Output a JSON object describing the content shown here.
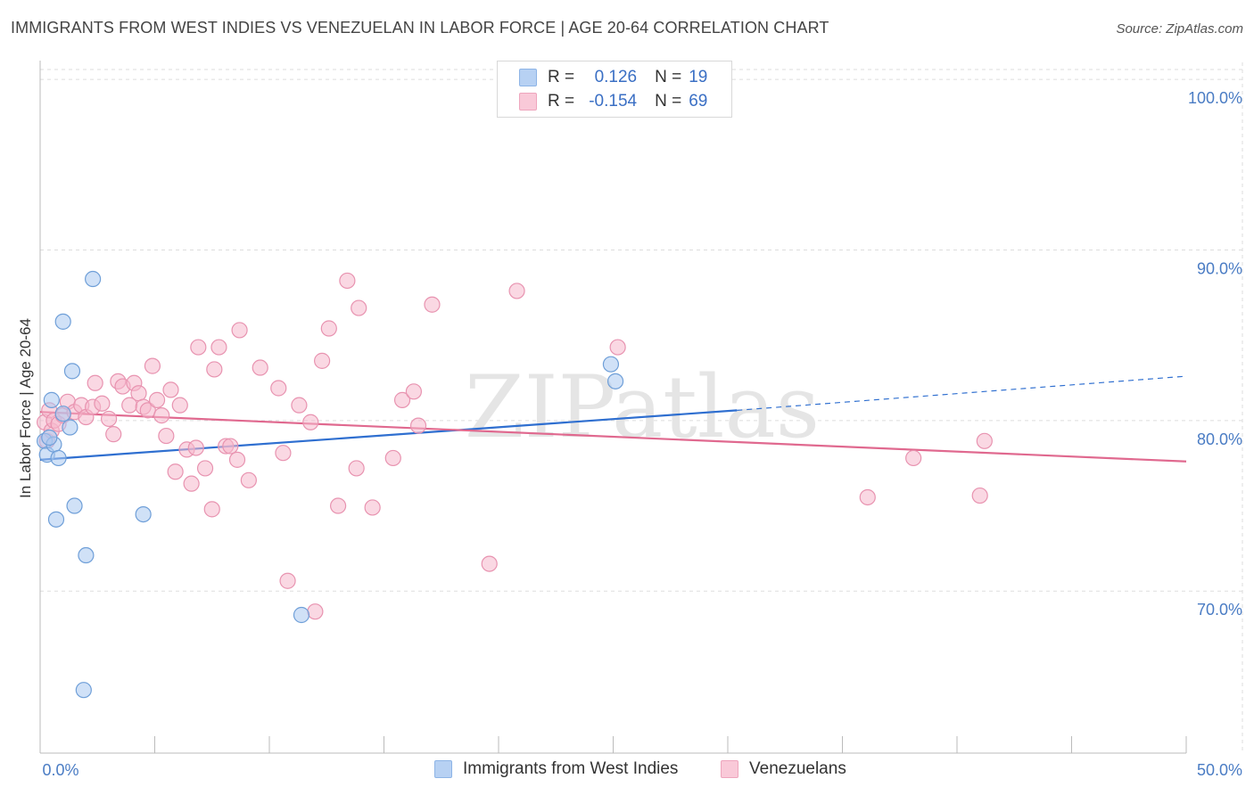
{
  "title": "IMMIGRANTS FROM WEST INDIES VS VENEZUELAN IN LABOR FORCE | AGE 20-64 CORRELATION CHART",
  "source": "Source: ZipAtlas.com",
  "watermark": "ZIPatlas",
  "legend": {
    "series1": {
      "r_label": "R =",
      "r_value": "0.126",
      "n_label": "N =",
      "n_value": "19"
    },
    "series2": {
      "r_label": "R =",
      "r_value": "-0.154",
      "n_label": "N =",
      "n_value": "69"
    }
  },
  "colors": {
    "blue_fill": "#aac8f0",
    "blue_stroke": "#6f9fd8",
    "blue_line": "#2f6fd0",
    "pink_fill": "#f5b8cc",
    "pink_stroke": "#e893b0",
    "pink_line": "#e0698f",
    "grid": "#dddddd",
    "tick_text": "#4a7cc4"
  },
  "chart_data": {
    "type": "scatter",
    "title": "IMMIGRANTS FROM WEST INDIES VS VENEZUELAN IN LABOR FORCE | AGE 20-64 CORRELATION CHART",
    "xlabel": "",
    "ylabel": "In Labor Force | Age 20-64",
    "xlim": [
      0,
      50
    ],
    "ylim": [
      60.5,
      101
    ],
    "x_tick_labels": [
      "0.0%",
      "50.0%"
    ],
    "y_ticks": [
      70,
      80,
      90,
      100
    ],
    "y_tick_labels": [
      "70.0%",
      "80.0%",
      "90.0%",
      "100.0%"
    ],
    "grid": "horizontal dashed",
    "legend_position": "top-center and bottom",
    "series": [
      {
        "name": "Immigrants from West Indies",
        "color": "#aac8f0",
        "points": [
          [
            0.2,
            78.8
          ],
          [
            0.3,
            78.0
          ],
          [
            0.5,
            81.2
          ],
          [
            0.6,
            78.6
          ],
          [
            0.7,
            74.2
          ],
          [
            0.8,
            77.8
          ],
          [
            1.0,
            80.4
          ],
          [
            1.0,
            85.8
          ],
          [
            1.3,
            79.6
          ],
          [
            1.4,
            82.9
          ],
          [
            1.5,
            75.0
          ],
          [
            2.0,
            72.1
          ],
          [
            2.3,
            88.3
          ],
          [
            1.9,
            64.2
          ],
          [
            4.5,
            74.5
          ],
          [
            11.4,
            68.6
          ],
          [
            24.9,
            83.3
          ],
          [
            25.1,
            82.3
          ],
          [
            0.4,
            79.0
          ]
        ],
        "trend": {
          "x": [
            0,
            30.4
          ],
          "y": [
            77.7,
            80.6
          ]
        },
        "trend_extension": {
          "x": [
            30.4,
            50
          ],
          "y": [
            80.6,
            82.6
          ]
        }
      },
      {
        "name": "Venezuelans",
        "color": "#f5b8cc",
        "points": [
          [
            0.2,
            79.9
          ],
          [
            0.3,
            78.8
          ],
          [
            0.4,
            80.6
          ],
          [
            0.5,
            79.4
          ],
          [
            0.6,
            80.0
          ],
          [
            0.8,
            79.8
          ],
          [
            1.0,
            80.3
          ],
          [
            1.2,
            81.1
          ],
          [
            1.5,
            80.5
          ],
          [
            1.8,
            80.9
          ],
          [
            2.0,
            80.2
          ],
          [
            2.3,
            80.8
          ],
          [
            2.4,
            82.2
          ],
          [
            2.7,
            81.0
          ],
          [
            3.0,
            80.1
          ],
          [
            3.2,
            79.2
          ],
          [
            3.4,
            82.3
          ],
          [
            3.6,
            82.0
          ],
          [
            3.9,
            80.9
          ],
          [
            4.1,
            82.2
          ],
          [
            4.3,
            81.6
          ],
          [
            4.5,
            80.8
          ],
          [
            4.7,
            80.6
          ],
          [
            4.9,
            83.2
          ],
          [
            5.1,
            81.2
          ],
          [
            5.3,
            80.3
          ],
          [
            5.5,
            79.1
          ],
          [
            5.7,
            81.8
          ],
          [
            5.9,
            77.0
          ],
          [
            6.1,
            80.9
          ],
          [
            6.4,
            78.3
          ],
          [
            6.6,
            76.3
          ],
          [
            6.8,
            78.4
          ],
          [
            6.9,
            84.3
          ],
          [
            7.2,
            77.2
          ],
          [
            7.5,
            74.8
          ],
          [
            7.6,
            83.0
          ],
          [
            7.8,
            84.3
          ],
          [
            8.1,
            78.5
          ],
          [
            8.3,
            78.5
          ],
          [
            8.6,
            77.7
          ],
          [
            8.7,
            85.3
          ],
          [
            9.1,
            76.5
          ],
          [
            9.6,
            83.1
          ],
          [
            10.4,
            81.9
          ],
          [
            10.6,
            78.1
          ],
          [
            10.8,
            70.6
          ],
          [
            11.3,
            80.9
          ],
          [
            11.8,
            79.9
          ],
          [
            12.0,
            68.8
          ],
          [
            12.3,
            83.5
          ],
          [
            12.6,
            85.4
          ],
          [
            13.0,
            75.0
          ],
          [
            13.4,
            88.2
          ],
          [
            13.8,
            77.2
          ],
          [
            13.9,
            86.6
          ],
          [
            14.5,
            74.9
          ],
          [
            15.4,
            77.8
          ],
          [
            15.8,
            81.2
          ],
          [
            16.3,
            81.7
          ],
          [
            16.5,
            79.7
          ],
          [
            17.1,
            86.8
          ],
          [
            19.6,
            71.6
          ],
          [
            20.8,
            87.6
          ],
          [
            25.2,
            84.3
          ],
          [
            36.1,
            75.5
          ],
          [
            38.1,
            77.8
          ],
          [
            41.0,
            75.6
          ],
          [
            41.2,
            78.8
          ]
        ],
        "trend": {
          "x": [
            0,
            50
          ],
          "y": [
            80.5,
            77.6
          ]
        }
      }
    ]
  }
}
